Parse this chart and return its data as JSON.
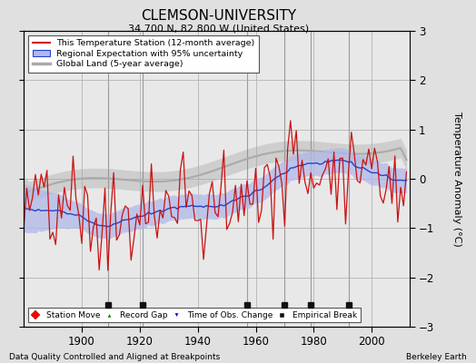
{
  "title": "CLEMSON-UNIVERSITY",
  "subtitle": "34.700 N, 82.800 W (United States)",
  "ylabel": "Temperature Anomaly (°C)",
  "footer_left": "Data Quality Controlled and Aligned at Breakpoints",
  "footer_right": "Berkeley Earth",
  "xlim": [
    1880,
    2013
  ],
  "ylim": [
    -3,
    3
  ],
  "yticks": [
    -3,
    -2,
    -1,
    0,
    1,
    2,
    3
  ],
  "xticks": [
    1900,
    1920,
    1940,
    1960,
    1980,
    2000
  ],
  "bg_color": "#e0e0e0",
  "plot_bg_color": "#e8e8e8",
  "legend_entries": [
    "This Temperature Station (12-month average)",
    "Regional Expectation with 95% uncertainty",
    "Global Land (5-year average)"
  ],
  "station_move_years": [],
  "record_gap_years": [],
  "time_obs_change_years": [],
  "empirical_break_years": [
    1909,
    1921,
    1957,
    1970,
    1979,
    1992
  ],
  "seed": 12
}
